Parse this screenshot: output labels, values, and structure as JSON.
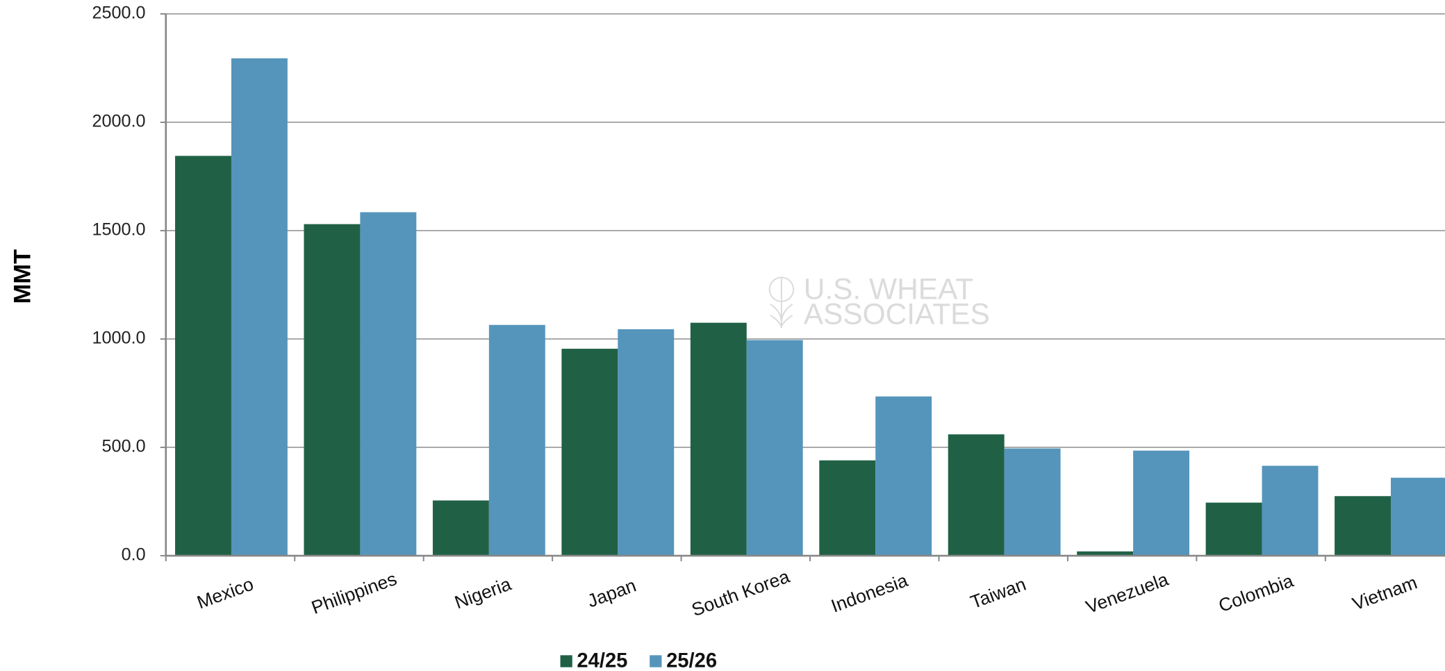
{
  "chart_data": {
    "type": "bar",
    "y_label": "MMT",
    "watermark": [
      "U.S. WHEAT",
      "ASSOCIATES"
    ],
    "categories": [
      "Mexico",
      "Philippines",
      "Nigeria",
      "Japan",
      "South Korea",
      "Indonesia",
      "Taiwan",
      "Venezuela",
      "Colombia",
      "Vietnam"
    ],
    "series": [
      {
        "name": "24/25",
        "color": "#206146",
        "values": [
          1845,
          1530,
          255,
          955,
          1075,
          440,
          560,
          20,
          245,
          275
        ]
      },
      {
        "name": "25/26",
        "color": "#5595bb",
        "values": [
          2295,
          1585,
          1065,
          1045,
          995,
          735,
          495,
          485,
          415,
          360
        ]
      }
    ],
    "ylim": [
      0,
      2500
    ],
    "yticks": [
      {
        "value": 0,
        "label": "0.0"
      },
      {
        "value": 500,
        "label": "500.0"
      },
      {
        "value": 1000,
        "label": "1000.0"
      },
      {
        "value": 1500,
        "label": "1500.0"
      },
      {
        "value": 2000,
        "label": "2000.0"
      },
      {
        "value": 2500,
        "label": "2500.0"
      }
    ],
    "grid": true,
    "legend": "bottom"
  }
}
